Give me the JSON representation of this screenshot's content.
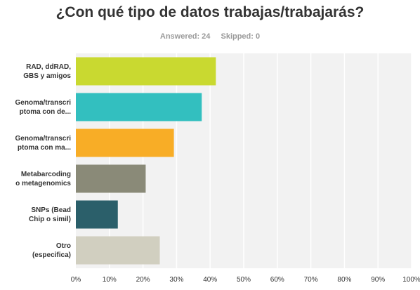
{
  "title": "¿Con qué tipo de datos trabajas/trabajarás?",
  "answered_label": "Answered: 24",
  "skipped_label": "Skipped: 0",
  "chart_data": {
    "type": "bar",
    "orientation": "horizontal",
    "categories": [
      "RAD, ddRAD,\nGBS y amigos",
      "Genoma/transcri\nptoma con de...",
      "Genoma/transcri\nptoma con ma...",
      "Metabarcoding\no metagenomics",
      "SNPs (Bead\nChip o simil)",
      "Otro\n(especifica)"
    ],
    "values": [
      41.7,
      37.5,
      29.2,
      20.8,
      12.5,
      25.0
    ],
    "colors": [
      "#c9d930",
      "#33bfbf",
      "#f8ad26",
      "#8a8a78",
      "#2b5f6a",
      "#d1cfc0"
    ],
    "xlim": [
      0,
      100
    ],
    "ticks": [
      "0%",
      "10%",
      "20%",
      "30%",
      "40%",
      "50%",
      "60%",
      "70%",
      "80%",
      "90%",
      "100%"
    ],
    "grid": true
  }
}
